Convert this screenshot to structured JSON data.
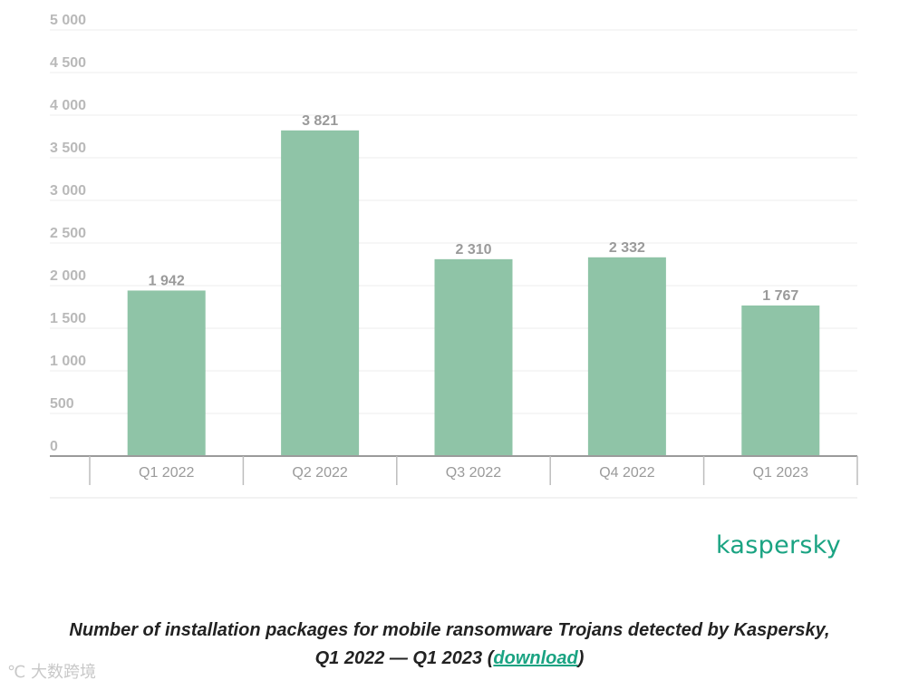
{
  "chart_data": {
    "type": "bar",
    "categories": [
      "Q1 2022",
      "Q2 2022",
      "Q3 2022",
      "Q4 2022",
      "Q1 2023"
    ],
    "values": [
      1942,
      3821,
      2310,
      2332,
      1767
    ],
    "value_labels": [
      "1 942",
      "3 821",
      "2 310",
      "2 332",
      "1 767"
    ],
    "ylim": [
      0,
      5000
    ],
    "yticks": [
      0,
      500,
      1000,
      1500,
      2000,
      2500,
      3000,
      3500,
      4000,
      4500,
      5000
    ],
    "ytick_labels": [
      "0",
      "500",
      "1 000",
      "1 500",
      "2 000",
      "2 500",
      "3 000",
      "3 500",
      "4 000",
      "4 500",
      "5 000"
    ],
    "grid": true,
    "bar_color": "#8fc4a7"
  },
  "brand": {
    "name": "kaspersky",
    "color": "#1aa382"
  },
  "caption": {
    "line1": "Number of installation packages for mobile ransomware Trojans detected by Kaspersky,",
    "line2_prefix": "Q1 2022 — Q1 2023 (",
    "link_text": "download",
    "line2_suffix": ")"
  },
  "watermark": {
    "text": "大数跨境"
  }
}
